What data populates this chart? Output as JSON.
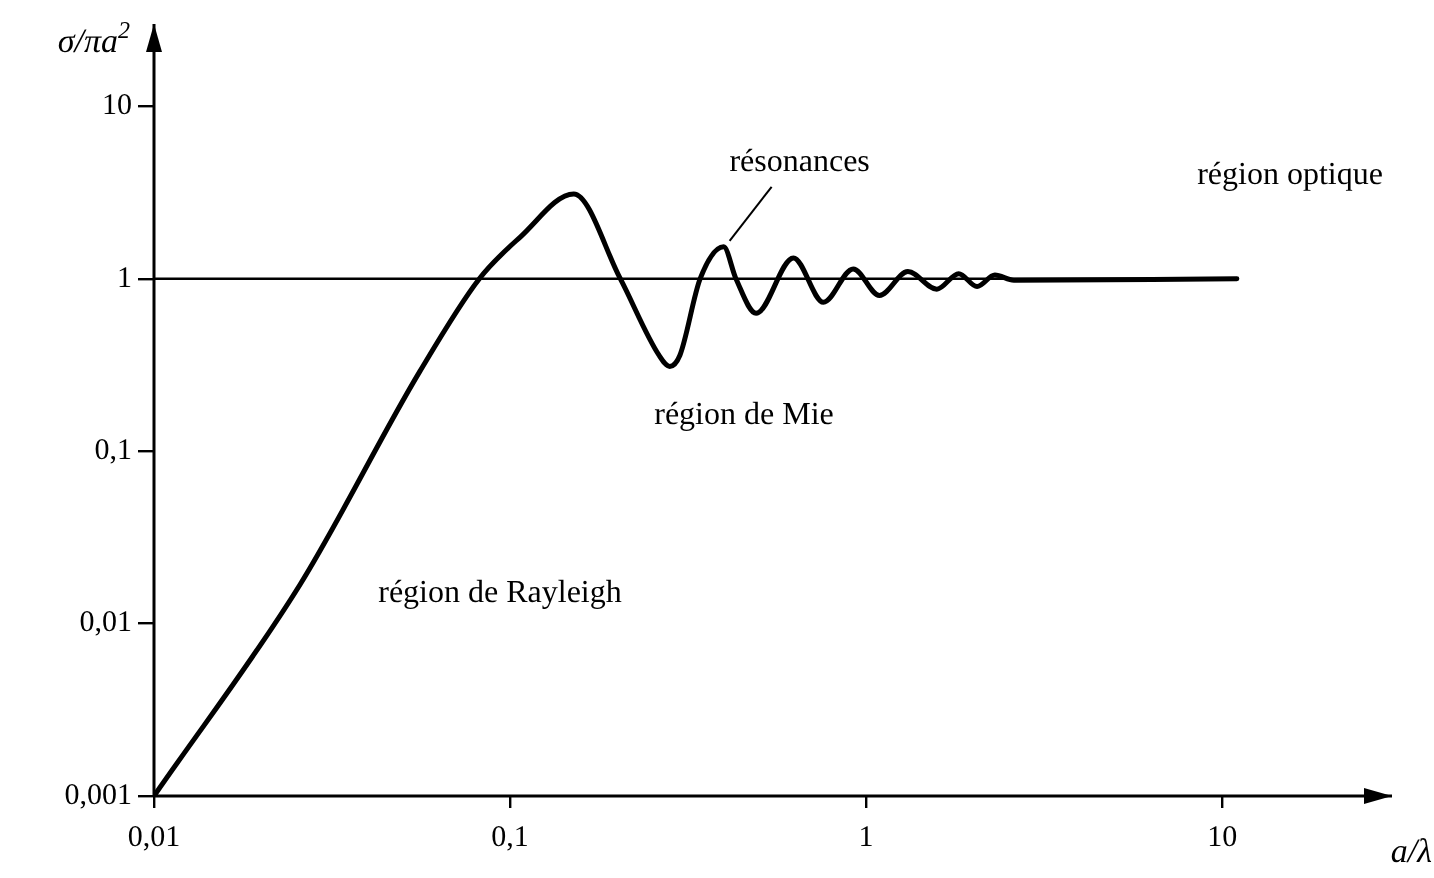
{
  "chart_data": {
    "type": "line",
    "xlabel": "a/λ",
    "ylabel": "σ/πa$^{2}$",
    "log": "xy",
    "grid": false,
    "legend": false,
    "marker": "none",
    "line_style": "solid",
    "xlim": [
      0.01,
      30
    ],
    "ylim": [
      0.001,
      30
    ],
    "xticks": [
      {
        "value": 0.01,
        "label": "0,01"
      },
      {
        "value": 0.1,
        "label": "0,1"
      },
      1,
      10
    ],
    "yticks": [
      {
        "value": 0.001,
        "label": "0,001"
      },
      {
        "value": 0.01,
        "label": "0,01"
      },
      {
        "value": 0.1,
        "label": "0,1"
      },
      1,
      10
    ],
    "ref_lines": [
      {
        "axis": "y",
        "value": 1,
        "label": null
      }
    ],
    "series": [
      {
        "color": "#000000",
        "x": [
          0.01,
          0.0257,
          0.0558,
          0.082,
          0.107,
          0.151,
          0.204,
          0.262,
          0.281,
          0.3,
          0.342,
          0.398,
          0.431,
          0.491,
          0.625,
          0.759,
          0.92,
          1.09,
          1.31,
          1.58,
          1.82,
          2.05,
          2.3,
          2.6,
          11
        ],
        "values": [
          0.001,
          0.0168,
          0.29,
          1,
          1.75,
          3.1,
          1,
          0.36,
          0.31,
          0.36,
          1,
          1.53,
          1,
          0.63,
          1.32,
          0.73,
          1.14,
          0.8,
          1.1,
          0.87,
          1.07,
          0.9,
          1.05,
          0.98,
          1
        ]
      }
    ],
    "annotations": [
      {
        "text": "résonances",
        "x": 0.398,
        "y": 1.53
      },
      "région optique",
      "région de Mie",
      "région de Rayleigh"
    ]
  }
}
